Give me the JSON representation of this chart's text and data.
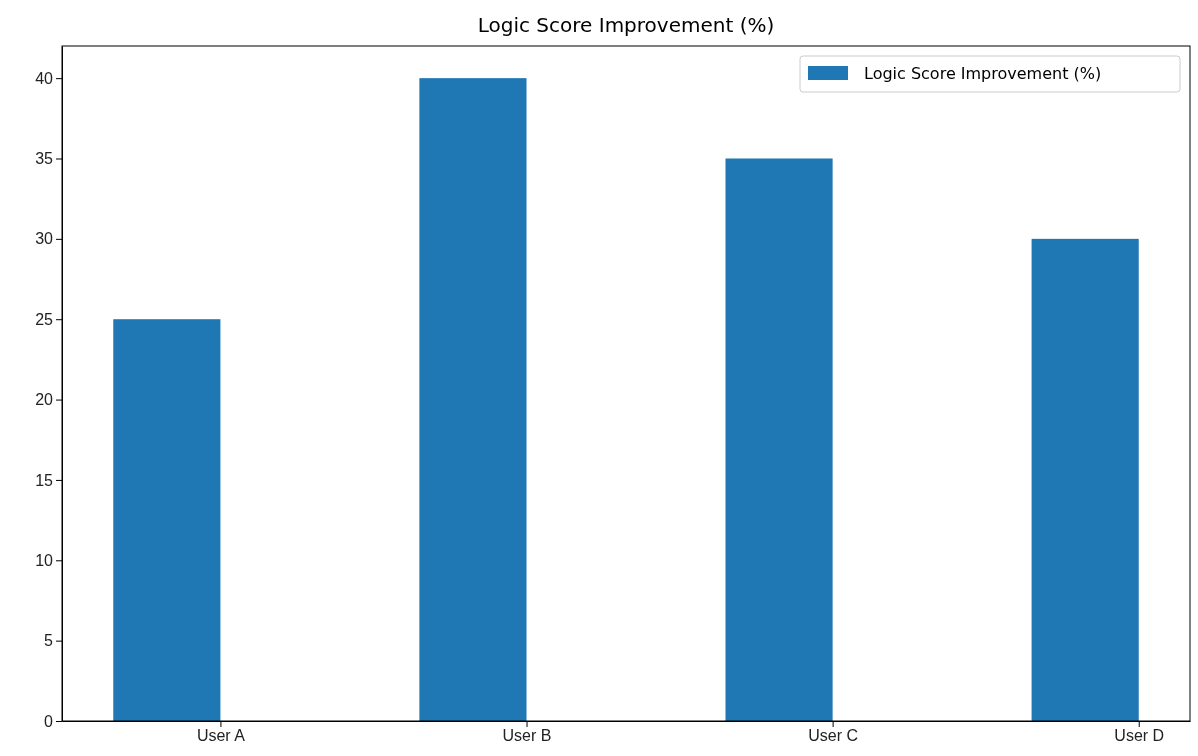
{
  "chart_data": {
    "type": "bar",
    "title": "Logic Score Improvement (%)",
    "categories": [
      "User A",
      "User B",
      "User C",
      "User D"
    ],
    "series": [
      {
        "name": "Logic Score Improvement (%)",
        "color": "#1f77b4",
        "values": [
          25,
          40,
          35,
          30
        ]
      }
    ],
    "ylim": [
      0,
      42
    ],
    "yticks": [
      0,
      5,
      10,
      15,
      20,
      25,
      30,
      35,
      40
    ],
    "legend": "top right"
  }
}
